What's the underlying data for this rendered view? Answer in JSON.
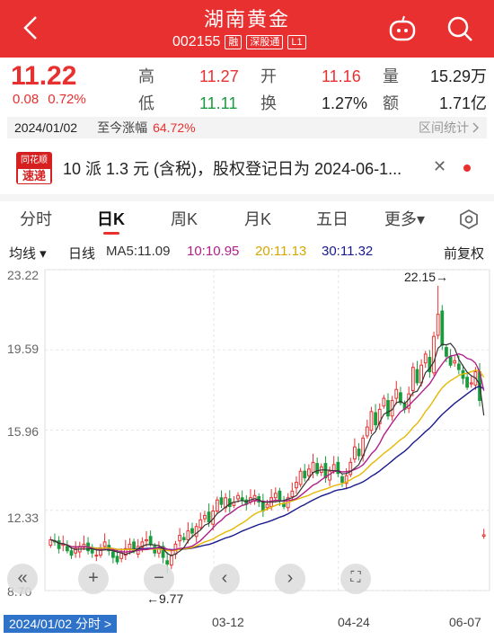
{
  "header": {
    "title": "湖南黄金",
    "code": "002155",
    "tags": [
      "融",
      "深股通",
      "L1"
    ]
  },
  "quote": {
    "price": "11.22",
    "change": "0.08",
    "change_pct": "0.72%",
    "high_label": "高",
    "high": "11.27",
    "open_label": "开",
    "open": "11.16",
    "vol_label": "量",
    "vol": "15.29万",
    "low_label": "低",
    "low": "11.11",
    "turn_label": "换",
    "turn": "1.27%",
    "amt_label": "额",
    "amt": "1.71亿"
  },
  "datebar": {
    "date": "2024/01/02",
    "label": "至今涨幅",
    "pct": "64.72%",
    "stat": "区间统计"
  },
  "news": {
    "logo_top": "同花顺",
    "logo_bottom": "速递",
    "text": "10 派 1.3 元 (含税)，股权登记日为 2024-06-1..."
  },
  "tabs": [
    "分时",
    "日K",
    "周K",
    "月K",
    "五日",
    "更多▾"
  ],
  "legend": {
    "avg": "均线 ▾",
    "line": "日线",
    "ma5": "MA5:11.09",
    "ma10": "10:10.95",
    "ma20": "20:11.13",
    "ma30": "30:11.32",
    "adj": "前复权"
  },
  "colors": {
    "up": "#e93030",
    "down": "#1a9c3e",
    "ma5": "#333333",
    "ma10": "#b0208a",
    "ma20": "#e6b800",
    "ma30": "#1a1a8c"
  },
  "chart_data": {
    "type": "candlestick",
    "y_ticks": [
      "23.22",
      "19.59",
      "15.96",
      "12.33",
      "8.70"
    ],
    "ylim": [
      8.7,
      23.22
    ],
    "high_mark": "22.15→",
    "low_mark": "←9.77",
    "closes": [
      11.0,
      10.9,
      10.6,
      10.8,
      10.5,
      10.3,
      10.6,
      10.7,
      10.8,
      10.5,
      10.4,
      10.3,
      10.6,
      10.9,
      10.5,
      10.2,
      10.0,
      10.4,
      10.6,
      10.8,
      10.5,
      10.7,
      10.9,
      11.0,
      10.8,
      10.4,
      10.6,
      10.2,
      9.9,
      10.3,
      10.8,
      11.2,
      11.0,
      11.4,
      11.3,
      11.6,
      11.9,
      12.1,
      11.8,
      12.3,
      12.8,
      12.6,
      12.9,
      12.5,
      12.7,
      13.0,
      12.8,
      12.6,
      12.9,
      13.0,
      12.7,
      12.3,
      12.6,
      12.9,
      13.1,
      12.8,
      12.5,
      12.9,
      13.2,
      13.6,
      14.1,
      13.8,
      14.2,
      14.5,
      14.0,
      14.3,
      13.8,
      14.1,
      14.4,
      14.0,
      13.6,
      13.9,
      14.5,
      15.2,
      14.8,
      15.6,
      16.1,
      16.8,
      16.2,
      16.9,
      17.4,
      16.6,
      17.3,
      17.8,
      17.2,
      16.9,
      17.6,
      18.8,
      18.1,
      18.9,
      19.4,
      18.6,
      20.2,
      21.2,
      19.8,
      19.3,
      18.9,
      19.1,
      18.7,
      18.3,
      17.9,
      18.1,
      18.6,
      17.3,
      11.22
    ],
    "x_labels": [
      "2024/01/02 分时 >",
      "03-12",
      "04-24",
      "06-07"
    ]
  }
}
